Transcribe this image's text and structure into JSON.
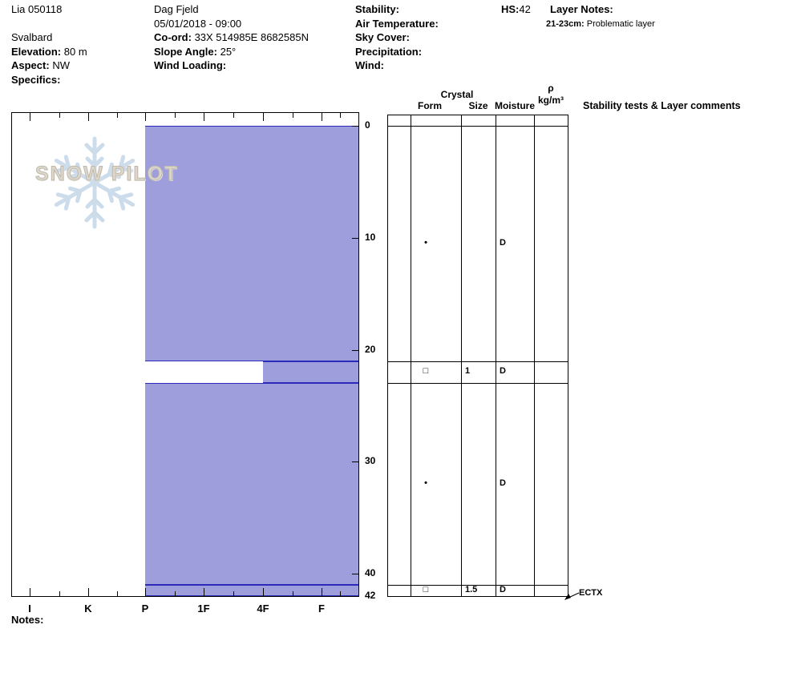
{
  "header": {
    "pit_name": "Lia 050118",
    "location": "Svalbard",
    "elevation_label": "Elevation:",
    "elevation_value": "80 m",
    "aspect_label": "Aspect:",
    "aspect_value": "NW",
    "specifics_label": "Specifics:",
    "observer": "Dag Fjeld",
    "datetime": "05/01/2018 - 09:00",
    "coord_label": "Co-ord:",
    "coord_value": "33X 514985E 8682585N",
    "slope_angle_label": "Slope Angle:",
    "slope_angle_value": "25°",
    "wind_loading_label": "Wind Loading:",
    "stability_label": "Stability:",
    "air_temperature_label": "Air Temperature:",
    "sky_cover_label": "Sky Cover:",
    "precipitation_label": "Precipitation:",
    "wind_label": "Wind:",
    "hs_label": "HS:",
    "hs_value": "42",
    "layer_notes_label": "Layer Notes:",
    "layer_note_depth": "21-23cm:",
    "layer_note_text": "Problematic layer"
  },
  "logo": {
    "text": "SNOW PILOT"
  },
  "table": {
    "crystal": "Crystal",
    "form": "Form",
    "size": "Size",
    "moisture": "Moisture",
    "density_symbol": "ρ",
    "density_unit": "kg/m³",
    "stability": "Stability tests & Layer comments"
  },
  "notes_label": "Notes:",
  "colors": {
    "bar": "#9e9edd",
    "boundary": "#2b2bb8"
  },
  "chart_data": {
    "type": "bar",
    "variant": "snow-pit-hardness-profile",
    "hardness_axis": [
      "I",
      "K",
      "P",
      "1F",
      "4F",
      "F"
    ],
    "depth_ticks": [
      {
        "label": "0",
        "cm": 0
      },
      {
        "label": "10",
        "cm": 10
      },
      {
        "label": "20",
        "cm": 20
      },
      {
        "label": "30",
        "cm": 30
      },
      {
        "label": "40",
        "cm": 40
      },
      {
        "label": "42",
        "cm": 42
      }
    ],
    "depth_range_cm": [
      0,
      42
    ],
    "total_snow_height_cm": 42,
    "layers": [
      {
        "top_cm": 0,
        "bottom_cm": 21,
        "hardness": "P",
        "grain_form_symbol": "•",
        "grain_size_mm": "",
        "moisture": "D"
      },
      {
        "top_cm": 21,
        "bottom_cm": 23,
        "hardness": "4F",
        "grain_form_symbol": "□",
        "grain_size_mm": "1",
        "moisture": "D"
      },
      {
        "top_cm": 23,
        "bottom_cm": 41,
        "hardness": "P",
        "grain_form_symbol": "•",
        "grain_size_mm": "",
        "moisture": "D"
      },
      {
        "top_cm": 41,
        "bottom_cm": 42,
        "hardness": "P",
        "grain_form_symbol": "□",
        "grain_size_mm": "1.5",
        "moisture": "D"
      }
    ],
    "stability_tests": [
      {
        "name": "ECTX",
        "depth_cm": 42
      }
    ]
  }
}
